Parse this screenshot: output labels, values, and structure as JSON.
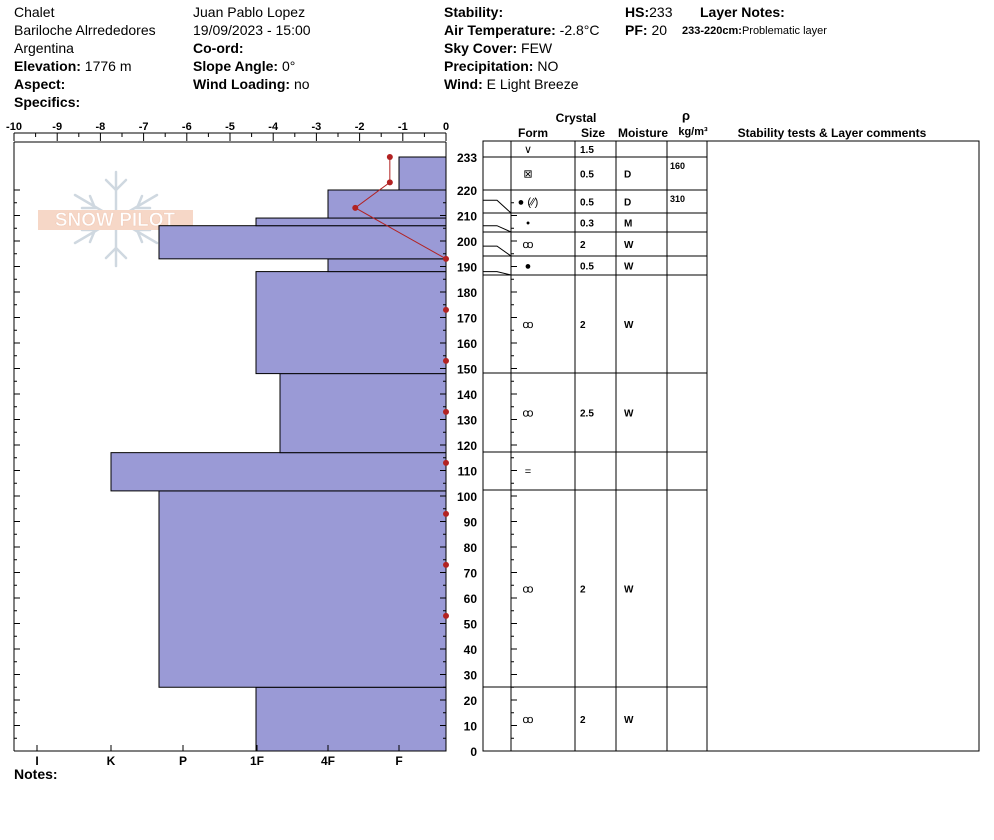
{
  "header": {
    "location": "Chalet",
    "area": "Bariloche Alrrededores",
    "country": "Argentina",
    "elevation_label": "Elevation:",
    "elevation_value": "1776 m",
    "aspect_label": "Aspect:",
    "specifics_label": "Specifics:",
    "observer": "Juan Pablo  Lopez",
    "datetime": "19/09/2023 - 15:00",
    "coord_label": "Co-ord:",
    "slope_label": "Slope Angle:",
    "slope_value": "0°",
    "wind_loading_label": "Wind Loading:",
    "wind_loading_value": "no",
    "stability_label": "Stability:",
    "air_temp_label": "Air Temperature:",
    "air_temp_value": "-2.8°C",
    "sky_label": "Sky Cover:",
    "sky_value": "FEW",
    "precip_label": "Precipitation:",
    "precip_value": "NO",
    "wind_label": "Wind:",
    "wind_value": "E Light Breeze",
    "hs_label": "HS:",
    "hs_value": "233",
    "pf_label": "PF:",
    "pf_value": "20",
    "layer_notes_label": "Layer Notes:",
    "layer_note_range": "233-220cm:",
    "layer_note_text": "Problematic layer"
  },
  "logo_text": "SNOW PILOT",
  "notes_label": "Notes:",
  "table_headers": {
    "crystal": "Crystal",
    "form": "Form",
    "size": "Size",
    "moisture": "Moisture",
    "rho": "ρ",
    "density_unit": "kg/m³",
    "comments": "Stability tests & Layer comments"
  },
  "chart_data": {
    "type": "snow_profile",
    "temperature_axis": {
      "min": -10,
      "max": 0,
      "ticks": [
        "-10",
        "-9",
        "-8",
        "-7",
        "-6",
        "-5",
        "-4",
        "-3",
        "-2",
        "-1",
        "0"
      ]
    },
    "height_axis": {
      "min": 0,
      "max": 233,
      "ticks": [
        "0",
        "10",
        "20",
        "30",
        "40",
        "50",
        "60",
        "70",
        "80",
        "90",
        "100",
        "110",
        "120",
        "130",
        "140",
        "150",
        "160",
        "170",
        "180",
        "190",
        "200",
        "210",
        "220",
        "233"
      ]
    },
    "hardness_axis": {
      "labels": [
        "I",
        "K",
        "P",
        "1F",
        "4F",
        "F"
      ]
    },
    "hardness_layers": [
      {
        "bottom": 0,
        "top": 25,
        "hardness": "1F"
      },
      {
        "bottom": 25,
        "top": 102,
        "hardness": "P"
      },
      {
        "bottom": 102,
        "top": 117,
        "hardness": "K-"
      },
      {
        "bottom": 117,
        "top": 148,
        "hardness": "1F-"
      },
      {
        "bottom": 148,
        "top": 188,
        "hardness": "1F"
      },
      {
        "bottom": 188,
        "top": 193,
        "hardness": "4F"
      },
      {
        "bottom": 193,
        "top": 206,
        "hardness": "P"
      },
      {
        "bottom": 206,
        "top": 209,
        "hardness": "1F"
      },
      {
        "bottom": 209,
        "top": 220,
        "hardness": "4F"
      },
      {
        "bottom": 220,
        "top": 233,
        "hardness": "F"
      }
    ],
    "temperature_profile": [
      {
        "height": 233,
        "temp": -1.3
      },
      {
        "height": 223,
        "temp": -1.3
      },
      {
        "height": 213,
        "temp": -2.1
      },
      {
        "height": 193,
        "temp": 0
      },
      {
        "height": 173,
        "temp": 0
      },
      {
        "height": 153,
        "temp": 0
      },
      {
        "height": 133,
        "temp": 0
      },
      {
        "height": 113,
        "temp": 0
      },
      {
        "height": 93,
        "temp": 0
      },
      {
        "height": 73,
        "temp": 0
      },
      {
        "height": 53,
        "temp": 0
      }
    ],
    "layers": [
      {
        "top": 233,
        "bottom": 229,
        "form": "∨",
        "size": "1.5",
        "moisture": "",
        "density": ""
      },
      {
        "top": 229,
        "bottom": 220,
        "form": "⊠",
        "size": "0.5",
        "moisture": "D",
        "density": "160"
      },
      {
        "top": 220,
        "bottom": 209,
        "form": "● (⁄⁄)",
        "size": "0.5",
        "moisture": "D",
        "density": "310"
      },
      {
        "top": 209,
        "bottom": 204,
        "form": "•",
        "size": "0.3",
        "moisture": "M",
        "density": ""
      },
      {
        "top": 204,
        "bottom": 195,
        "form": "ꝏ",
        "size": "2",
        "moisture": "W",
        "density": ""
      },
      {
        "top": 195,
        "bottom": 188,
        "form": "●",
        "size": "0.5",
        "moisture": "W",
        "density": ""
      },
      {
        "top": 188,
        "bottom": 148,
        "form": "ꝏ",
        "size": "2",
        "moisture": "W",
        "density": ""
      },
      {
        "top": 148,
        "bottom": 117,
        "form": "ꝏ",
        "size": "2.5",
        "moisture": "W",
        "density": ""
      },
      {
        "top": 117,
        "bottom": 102,
        "form": "=",
        "size": "",
        "moisture": "",
        "density": ""
      },
      {
        "top": 102,
        "bottom": 25,
        "form": "ꝏ",
        "size": "2",
        "moisture": "W",
        "density": ""
      },
      {
        "top": 25,
        "bottom": 0,
        "form": "ꝏ",
        "size": "2",
        "moisture": "W",
        "density": ""
      }
    ],
    "colors": {
      "hardness_fill": "#9a9ad6",
      "temperature": "#b22222"
    }
  }
}
